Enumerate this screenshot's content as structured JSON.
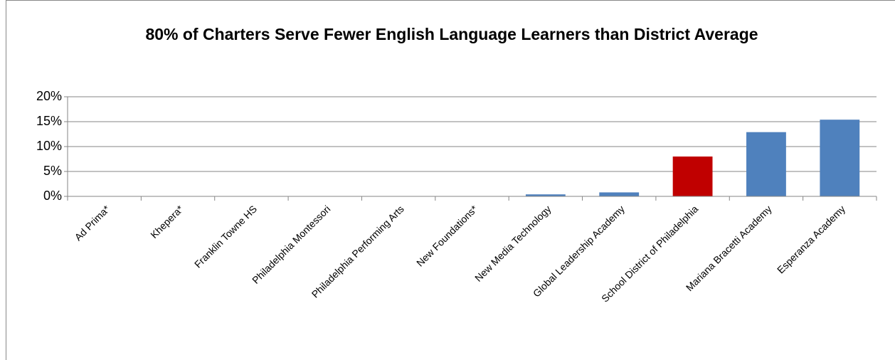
{
  "chart_data": {
    "type": "bar",
    "title": "80% of Charters Serve Fewer English Language Learners than District Average",
    "categories": [
      "Ad Prima*",
      "Khepera*",
      "Franklin Towne HS",
      "Philadelphia Montessori",
      "Philadelphia Performing Arts",
      "New Foundations*",
      "New Media Technology",
      "Global Leadership Academy",
      "School District of Philadelphia",
      "Mariana Bracetti Academy",
      "Esperanza Academy"
    ],
    "values": [
      0,
      0,
      0,
      0,
      0,
      0,
      0.4,
      0.8,
      8.0,
      12.9,
      15.4
    ],
    "colors": [
      "#4f81bd",
      "#4f81bd",
      "#4f81bd",
      "#4f81bd",
      "#4f81bd",
      "#4f81bd",
      "#4f81bd",
      "#4f81bd",
      "#c00000",
      "#4f81bd",
      "#4f81bd"
    ],
    "reference_line": {
      "value": 7.7,
      "color": "#c00000"
    },
    "ylim": [
      0,
      20
    ],
    "yticks": [
      {
        "value": 0,
        "label": "0%"
      },
      {
        "value": 5,
        "label": "5%"
      },
      {
        "value": 10,
        "label": "10%"
      },
      {
        "value": 15,
        "label": "15%"
      },
      {
        "value": 20,
        "label": "20%"
      }
    ],
    "grid": true
  }
}
